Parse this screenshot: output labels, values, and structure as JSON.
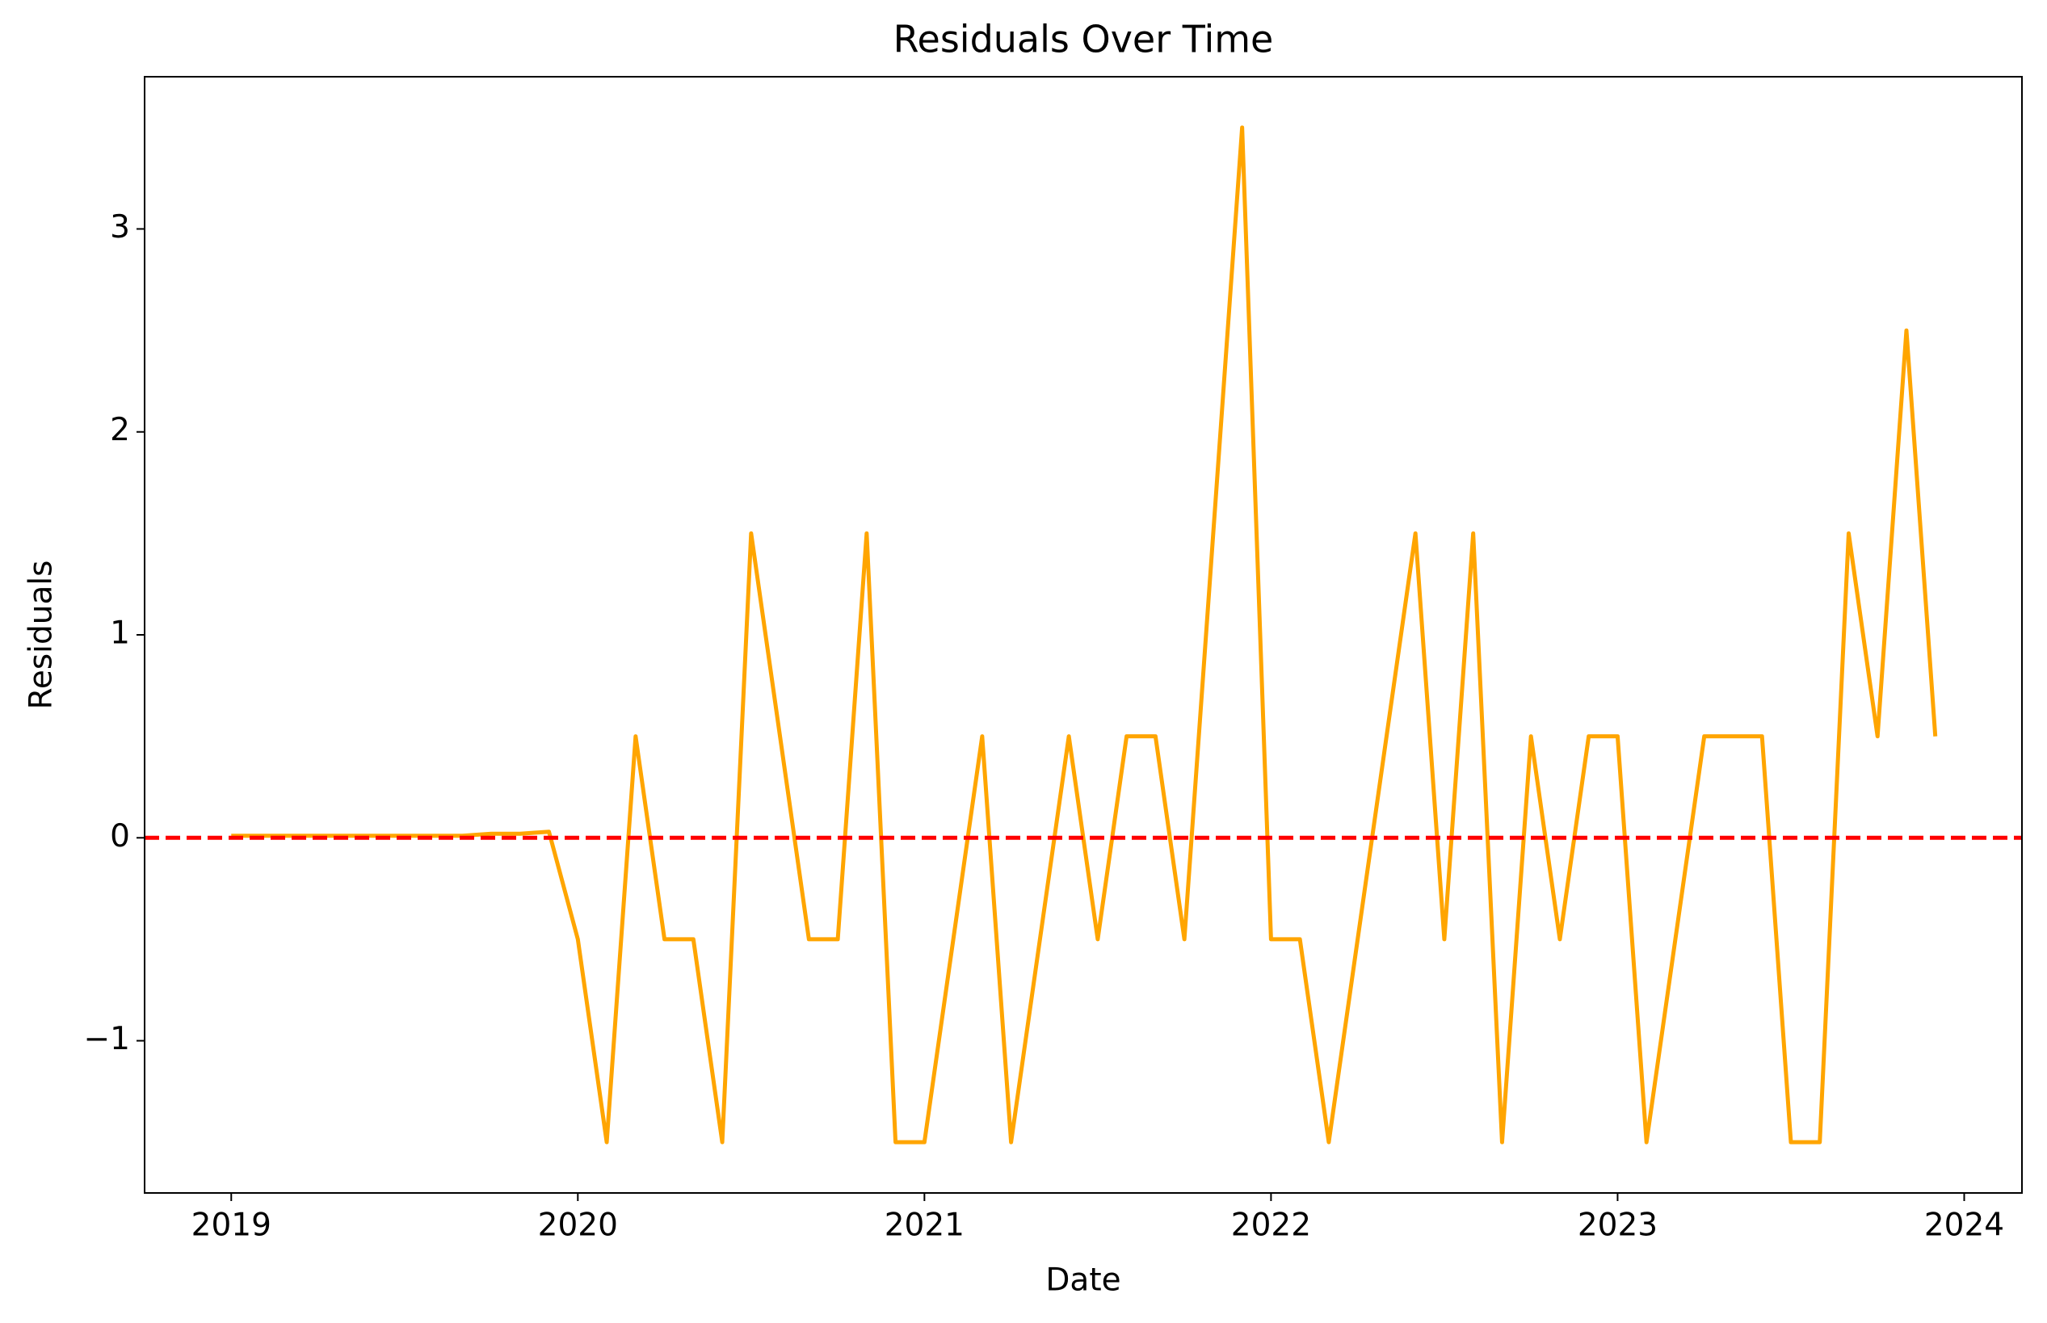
{
  "chart_data": {
    "type": "line",
    "title": "Residuals Over Time",
    "x_label": "Date",
    "y_label": "Residuals",
    "x": [
      "2019-01",
      "2019-02",
      "2019-03",
      "2019-04",
      "2019-05",
      "2019-06",
      "2019-07",
      "2019-08",
      "2019-09",
      "2019-10",
      "2019-11",
      "2019-12",
      "2020-01",
      "2020-02",
      "2020-03",
      "2020-04",
      "2020-05",
      "2020-06",
      "2020-07",
      "2020-08",
      "2020-09",
      "2020-10",
      "2020-11",
      "2020-12",
      "2021-01",
      "2021-02",
      "2021-03",
      "2021-04",
      "2021-05",
      "2021-06",
      "2021-07",
      "2021-08",
      "2021-09",
      "2021-10",
      "2021-11",
      "2021-12",
      "2022-01",
      "2022-02",
      "2022-03",
      "2022-04",
      "2022-05",
      "2022-06",
      "2022-07",
      "2022-08",
      "2022-09",
      "2022-10",
      "2022-11",
      "2022-12",
      "2023-01",
      "2023-02",
      "2023-03",
      "2023-04",
      "2023-05",
      "2023-06",
      "2023-07",
      "2023-08",
      "2023-09",
      "2023-10",
      "2023-11",
      "2023-12"
    ],
    "series": [
      {
        "color": "#ffa500",
        "values": [
          0.01,
          0.01,
          0.01,
          0.01,
          0.01,
          0.01,
          0.01,
          0.01,
          0.01,
          0.02,
          0.02,
          0.03,
          -0.5,
          -1.5,
          0.5,
          -0.5,
          -0.5,
          -1.5,
          1.5,
          0.5,
          -0.5,
          -0.5,
          1.5,
          -1.5,
          -1.5,
          -0.5,
          0.5,
          -1.5,
          -0.5,
          0.5,
          -0.5,
          0.5,
          0.5,
          -0.5,
          1.5,
          3.5,
          -0.5,
          -0.5,
          -1.5,
          -0.5,
          0.5,
          1.5,
          -0.5,
          1.5,
          -1.5,
          0.5,
          -0.5,
          0.5,
          0.5,
          -1.5,
          -0.5,
          0.5,
          0.5,
          0.5,
          -1.5,
          -1.5,
          1.5,
          0.5,
          2.5,
          0.5
        ]
      }
    ],
    "reference_line": {
      "value": 0,
      "color": "#ff0000",
      "style": "dashed"
    },
    "xlim": [
      "2018-10",
      "2024-03"
    ],
    "xticks": [
      {
        "value": "2019-01",
        "label": "2019"
      },
      {
        "value": "2020-01",
        "label": "2020"
      },
      {
        "value": "2021-01",
        "label": "2021"
      },
      {
        "value": "2022-01",
        "label": "2022"
      },
      {
        "value": "2023-01",
        "label": "2023"
      },
      {
        "value": "2024-01",
        "label": "2024"
      }
    ],
    "ylim": [
      -1.75,
      3.75
    ],
    "yticks": [
      {
        "value": -1,
        "label": "−1"
      },
      0,
      1,
      2,
      3
    ],
    "grid": false
  }
}
